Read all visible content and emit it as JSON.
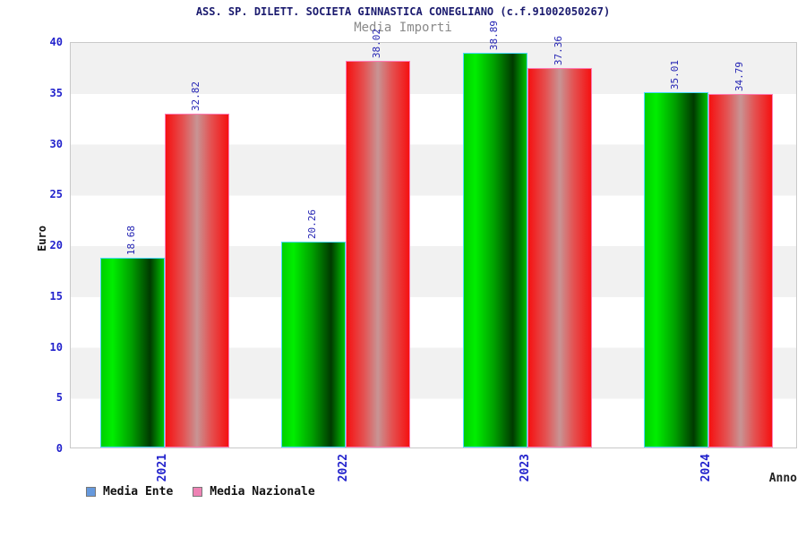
{
  "title": "ASS. SP. DILETT. SOCIETA GINNASTICA CONEGLIANO (c.f.91002050267)",
  "subtitle": "Media Importi",
  "chart_data": {
    "type": "bar",
    "categories": [
      "2021",
      "2022",
      "2023",
      "2024"
    ],
    "series": [
      {
        "name": "Media Ente",
        "color": "#00cc00",
        "legend_swatch": "#6699dd",
        "values": [
          18.68,
          20.26,
          38.89,
          35.01
        ],
        "value_labels": [
          "18.68",
          "20.26",
          "38.89",
          "35.01"
        ]
      },
      {
        "name": "Media Nazionale",
        "color": "#ee2222",
        "legend_swatch": "#ee82b4",
        "values": [
          32.82,
          38.02,
          37.36,
          34.79
        ],
        "value_labels": [
          "32.82",
          "38.02",
          "37.36",
          "34.79"
        ]
      }
    ],
    "ylabel": "Euro",
    "xlabel": "Anno",
    "ylim": [
      0,
      40
    ],
    "yticks": [
      "0",
      "5",
      "10",
      "15",
      "20",
      "25",
      "30",
      "35",
      "40"
    ],
    "grid": "alternating-horizontal-bands",
    "legend_position": "bottom-left"
  },
  "colors": {
    "tick_label": "#2222cc",
    "value_label": "#2525b4",
    "title": "#1a1a6e",
    "subtitle": "#8a8a8a",
    "band_gray": "#f1f1f1",
    "green_bar_border": "#4dd9ff",
    "red_bar_border": "#ff7ab4"
  }
}
